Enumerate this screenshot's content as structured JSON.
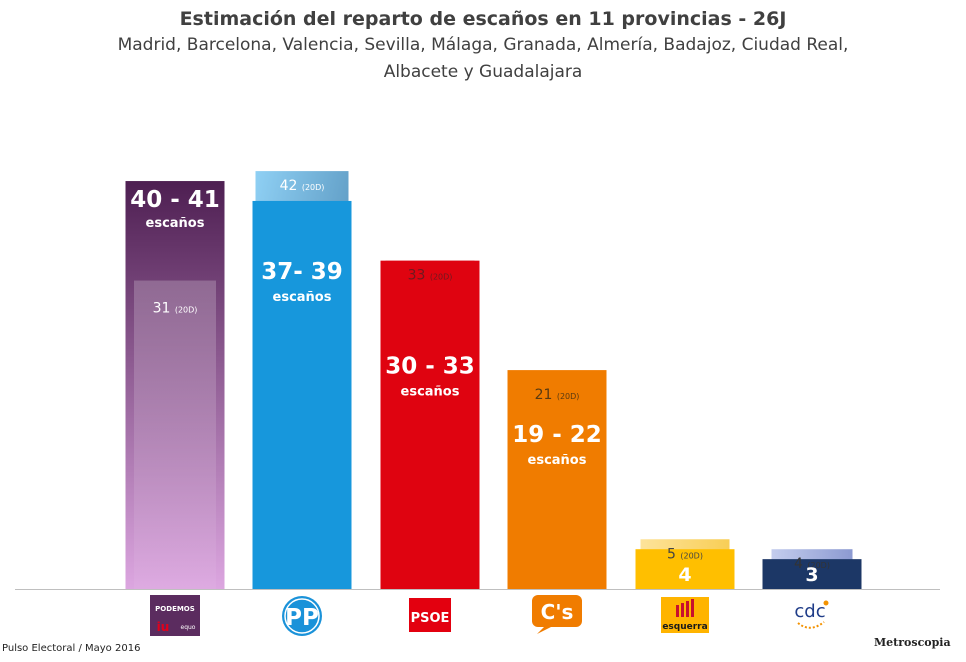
{
  "header": {
    "title": "Estimación del reparto de escaños en 11 provincias - 26J",
    "subtitle": "Madrid, Barcelona, Valencia, Sevilla, Málaga, Granada, Almería, Badajoz, Ciudad Real, Albacete y Guadalajara"
  },
  "footer": {
    "source": "Pulso Electoral / Mayo 2016",
    "brand": "Metroscopia"
  },
  "chart_data": {
    "type": "bar",
    "title": "Estimación del reparto de escaños en 11 provincias - 26J",
    "subtitle": "Madrid, Barcelona, Valencia, Sevilla, Málaga, Granada, Almería, Badajoz, Ciudad Real, Albacete y Guadalajara",
    "categories": [
      "Unidos Podemos",
      "PP",
      "PSOE",
      "C's",
      "Esquerra",
      "CDC"
    ],
    "unit_label": "escaños",
    "prev_tag": "(20D)",
    "ylim": [
      0,
      44
    ],
    "grid": false,
    "legend": "none",
    "series": [
      {
        "values": [
          40,
          37,
          30,
          19,
          4,
          3
        ],
        "max_values": [
          41,
          39,
          33,
          22,
          4,
          3
        ]
      },
      {
        "values": [
          31,
          42,
          33,
          21,
          5,
          4
        ]
      }
    ],
    "labels": [
      "40 - 41",
      "37- 39",
      "30 - 33",
      "19 - 22",
      "4",
      "3"
    ],
    "logos": [
      "PODEMOS",
      "PP",
      "PSOE",
      "C's",
      "esquerra",
      "cdc"
    ],
    "colors": {
      "podemos_top": "#4e1f52",
      "podemos_bottom": "#d9a0dc",
      "pp": "#1797dc",
      "pp_prev": "#6fb0d6",
      "psoe": "#df0310",
      "psoe_prev": "#e56d74",
      "cs": "#f07c00",
      "cs_prev": "#f8b84a",
      "erc": "#ffbf00",
      "erc_prev": "#fbd870",
      "cdc": "#1c3766",
      "cdc_prev": "#a5b4df"
    }
  }
}
